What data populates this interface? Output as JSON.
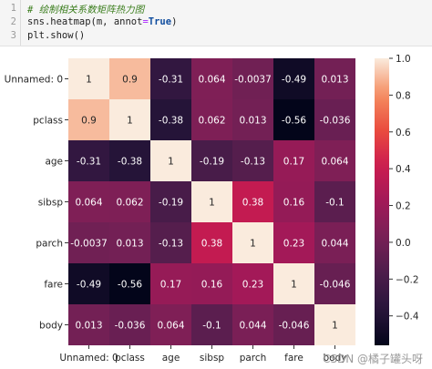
{
  "code_cell": {
    "line_numbers": [
      "1",
      "2",
      "3"
    ],
    "comment": "# 绘制相关系数矩阵热力图",
    "line2_start": "sns.heatmap(m, annot",
    "line2_eq": "=",
    "line2_kw": "True",
    "line2_end": ")",
    "line3": "plt.show()"
  },
  "chart_data": {
    "type": "heatmap",
    "title": "",
    "xlabel": "",
    "ylabel": "",
    "labels": [
      "Unnamed: 0",
      "pclass",
      "age",
      "sibsp",
      "parch",
      "fare",
      "body"
    ],
    "x_tick_labels": [
      "Unnamed: 0",
      "pclass",
      "age",
      "sibsp",
      "parch",
      "fare",
      "body"
    ],
    "y_tick_labels": [
      "Unnamed: 0",
      "pclass",
      "age",
      "sibsp",
      "parch",
      "fare",
      "body"
    ],
    "values": [
      [
        1,
        0.9,
        -0.31,
        0.064,
        -0.0037,
        -0.49,
        0.013
      ],
      [
        0.9,
        1,
        -0.38,
        0.062,
        0.013,
        -0.56,
        -0.036
      ],
      [
        -0.31,
        -0.38,
        1,
        -0.19,
        -0.13,
        0.17,
        0.064
      ],
      [
        0.064,
        0.062,
        -0.19,
        1,
        0.38,
        0.16,
        -0.1
      ],
      [
        -0.0037,
        0.013,
        -0.13,
        0.38,
        1,
        0.23,
        0.044
      ],
      [
        -0.49,
        -0.56,
        0.17,
        0.16,
        0.23,
        1,
        -0.046
      ],
      [
        0.013,
        -0.036,
        0.064,
        -0.1,
        0.044,
        -0.046,
        1
      ]
    ],
    "annotations": [
      [
        "1",
        "0.9",
        "-0.31",
        "0.064",
        "-0.0037",
        "-0.49",
        "0.013"
      ],
      [
        "0.9",
        "1",
        "-0.38",
        "0.062",
        "0.013",
        "-0.56",
        "-0.036"
      ],
      [
        "-0.31",
        "-0.38",
        "1",
        "-0.19",
        "-0.13",
        "0.17",
        "0.064"
      ],
      [
        "0.064",
        "0.062",
        "-0.19",
        "1",
        "0.38",
        "0.16",
        "-0.1"
      ],
      [
        "-0.0037",
        "0.013",
        "-0.13",
        "0.38",
        "1",
        "0.23",
        "0.044"
      ],
      [
        "-0.49",
        "-0.56",
        "0.17",
        "0.16",
        "0.23",
        "1",
        "-0.046"
      ],
      [
        "0.013",
        "-0.036",
        "0.064",
        "-0.1",
        "0.044",
        "-0.046",
        "1"
      ]
    ],
    "colormap": "rocket",
    "vmin": -0.56,
    "vmax": 1.0,
    "colorbar_ticks": [
      1.0,
      0.8,
      0.6,
      0.4,
      0.2,
      0.0,
      -0.2,
      -0.4
    ],
    "colorbar_tick_labels": [
      "1.0",
      "0.8",
      "0.6",
      "0.4",
      "0.2",
      "0.0",
      "−0.2",
      "−0.4"
    ],
    "grid": false
  },
  "watermark": "CSDN @橘子罐头呀"
}
